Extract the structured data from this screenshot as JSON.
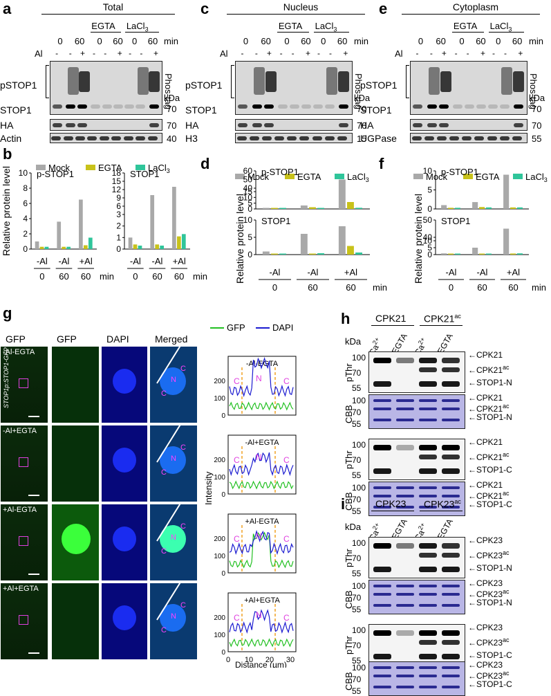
{
  "panels": {
    "a": "a",
    "b": "b",
    "c": "c",
    "d": "d",
    "e": "e",
    "f": "f",
    "g": "g",
    "h": "h",
    "i": "i"
  },
  "blots": {
    "a": {
      "title": "Total",
      "conditions": {
        "egta": "EGTA",
        "lacl3": "LaCl3"
      },
      "times": [
        "0",
        "60",
        "0",
        "60",
        "0",
        "60"
      ],
      "time_unit": "min",
      "al_signs": [
        "-",
        "-",
        "+",
        "-",
        "-",
        "+",
        "-",
        "-",
        "+"
      ],
      "al": "Al",
      "rows": [
        "pSTOP1",
        "STOP1",
        "HA",
        "Actin"
      ],
      "phostag": "Phos-tag",
      "kda": "kDa",
      "markers": [
        "70",
        "70",
        "40"
      ]
    },
    "c": {
      "title": "Nucleus",
      "conditions": {
        "egta": "EGTA",
        "lacl3": "LaCl3"
      },
      "times": [
        "0",
        "60",
        "0",
        "60",
        "0",
        "60"
      ],
      "time_unit": "min",
      "al_signs": [
        "-",
        "-",
        "+",
        "-",
        "-",
        "+",
        "-",
        "-",
        "+"
      ],
      "al": "Al",
      "rows": [
        "pSTOP1",
        "STOP1",
        "HA",
        "H3"
      ],
      "phostag": "Phos-tag",
      "kda": "kDa",
      "markers": [
        "70",
        "70",
        "15"
      ]
    },
    "e": {
      "title": "Cytoplasm",
      "conditions": {
        "egta": "EGTA",
        "lacl3": "LaCl3"
      },
      "times": [
        "0",
        "60",
        "0",
        "60",
        "0",
        "60"
      ],
      "time_unit": "min",
      "al_signs": [
        "-",
        "-",
        "+",
        "-",
        "-",
        "+",
        "-",
        "-",
        "+"
      ],
      "al": "Al",
      "rows": [
        "pSTOP1",
        "STOP1",
        "HA",
        "UGPase"
      ],
      "phostag": "Phos-tag",
      "kda": "kDa",
      "markers": [
        "70",
        "70",
        "55"
      ]
    }
  },
  "legend": {
    "mock": "Mock",
    "egta": "EGTA",
    "lacl3": "LaCl3",
    "colors": {
      "mock": "#a9a9a9",
      "egta": "#c8c21a",
      "lacl3": "#2fc59a"
    }
  },
  "chart_data": [
    {
      "panel": "b",
      "type": "bar",
      "title": "p-STOP1",
      "ylabel": "Relative protein level",
      "categories": [
        "-Al 0",
        "-Al 60",
        "+Al 60"
      ],
      "series": [
        {
          "name": "Mock",
          "values": [
            1.0,
            3.6,
            6.5
          ]
        },
        {
          "name": "EGTA",
          "values": [
            0.3,
            0.3,
            0.5
          ]
        },
        {
          "name": "LaCl3",
          "values": [
            0.3,
            0.3,
            1.5
          ]
        }
      ],
      "ylim": [
        0,
        10
      ],
      "yticks": [
        "0",
        "2",
        "4",
        "6",
        "8",
        "10"
      ],
      "sig": [
        "****",
        "****",
        "***",
        "***",
        "***",
        "***",
        "***"
      ]
    },
    {
      "panel": "b",
      "type": "bar",
      "title": "STOP1",
      "categories": [
        "-Al 0",
        "-Al 60",
        "+Al 60"
      ],
      "series": [
        {
          "name": "Mock",
          "values": [
            1.0,
            10.0,
            13.0
          ]
        },
        {
          "name": "EGTA",
          "values": [
            0.4,
            0.4,
            1.1
          ]
        },
        {
          "name": "LaCl3",
          "values": [
            0.3,
            0.3,
            1.3
          ]
        }
      ],
      "ylim": [
        0,
        18
      ],
      "yticks": [
        "0",
        "1",
        "2",
        "3",
        "6",
        "9",
        "12",
        "15",
        "18"
      ],
      "sig": [
        "****",
        "***",
        "****",
        "****",
        "****",
        "****"
      ]
    },
    {
      "panel": "d",
      "type": "bar",
      "title": "p-STOP1",
      "categories": [
        "-Al 0",
        "-Al 60",
        "+Al 60"
      ],
      "series": [
        {
          "name": "Mock",
          "values": [
            0.8,
            3.0,
            50
          ]
        },
        {
          "name": "EGTA",
          "values": [
            0.3,
            1.5,
            6
          ]
        },
        {
          "name": "LaCl3",
          "values": [
            0.4,
            0.8,
            1.0
          ]
        }
      ],
      "ylim": [
        0,
        60
      ],
      "yticks": [
        "0",
        "5",
        "10",
        "15",
        "40",
        "50",
        "60"
      ],
      "sig": [
        "**",
        "***",
        "****",
        "****"
      ]
    },
    {
      "panel": "d",
      "type": "bar",
      "title": "STOP1",
      "categories": [
        "-Al 0",
        "-Al 60",
        "+Al 60"
      ],
      "series": [
        {
          "name": "Mock",
          "values": [
            0.9,
            6.0,
            8.2
          ]
        },
        {
          "name": "EGTA",
          "values": [
            0.2,
            0.1,
            2.5
          ]
        },
        {
          "name": "LaCl3",
          "values": [
            0.2,
            0.4,
            0.6
          ]
        }
      ],
      "ylim": [
        0,
        10
      ],
      "yticks": [
        "0",
        "5",
        "10"
      ],
      "sig": [
        "***",
        "****",
        "****"
      ]
    },
    {
      "panel": "f",
      "type": "bar",
      "title": "p-STOP1",
      "categories": [
        "-Al 0",
        "-Al 60",
        "+Al 60"
      ],
      "series": [
        {
          "name": "Mock",
          "values": [
            1.0,
            1.8,
            9.0
          ]
        },
        {
          "name": "EGTA",
          "values": [
            0.3,
            0.5,
            0.4
          ]
        },
        {
          "name": "LaCl3",
          "values": [
            0.3,
            0.4,
            0.4
          ]
        }
      ],
      "ylim": [
        0,
        10
      ],
      "yticks": [
        "0",
        "5",
        "10"
      ],
      "sig": [
        "****",
        "***",
        "****",
        "****"
      ]
    },
    {
      "panel": "f",
      "type": "bar",
      "title": "STOP1",
      "categories": [
        "-Al 0",
        "-Al 60",
        "+Al 60"
      ],
      "series": [
        {
          "name": "Mock",
          "values": [
            0.9,
            5.0,
            45
          ]
        },
        {
          "name": "EGTA",
          "values": [
            0.2,
            0.3,
            0.8
          ]
        },
        {
          "name": "LaCl3",
          "values": [
            0.2,
            0.3,
            0.9
          ]
        }
      ],
      "ylim": [
        0,
        50
      ],
      "yticks": [
        "0",
        "5",
        "10",
        "40",
        "50"
      ],
      "sig": [
        "****",
        "****",
        "****"
      ]
    }
  ],
  "axis": {
    "al_groups": [
      "-Al",
      "-Al",
      "+Al"
    ],
    "times": [
      "0",
      "60",
      "60"
    ],
    "unit": "min",
    "ylabel": "Relative protein level"
  },
  "micro": {
    "cols": [
      "GFP",
      "GFP",
      "DAPI",
      "Merged"
    ],
    "rows": [
      "-Al-EGTA",
      "-Al+EGTA",
      "+Al-EGTA",
      "+Al+EGTA"
    ],
    "genotype": "STOP1p:STOP1-GFP",
    "n": "N",
    "c": "C"
  },
  "profiles": {
    "legend_gfp": "GFP",
    "legend_dapi": "DAPI",
    "xlabel": "Distance (µm)",
    "ylabel": "Intensity",
    "xticks": [
      "0",
      "10",
      "20",
      "30"
    ],
    "yticks": [
      "0",
      "100",
      "200",
      "300"
    ],
    "titles": [
      "-Al-EGTA",
      "-Al+EGTA",
      "+Al-EGTA",
      "+Al+EGTA"
    ],
    "colors": {
      "gfp": "#22c022",
      "dapi": "#1a1ad0",
      "dash": "#f0a020"
    }
  },
  "kinase_h": {
    "groups": [
      "CPK21",
      "CPK21ac"
    ],
    "lanes": [
      "Ca2+",
      "EGTA",
      "Ca2+",
      "EGTA"
    ],
    "kda": "kDa",
    "rows": [
      "pThr",
      "CBB",
      "pThr",
      "CBB"
    ],
    "markers": [
      "100",
      "70",
      "55"
    ],
    "labels": [
      [
        "CPK21",
        "CPK21ac",
        "STOP1-N"
      ],
      [
        "CPK21",
        "CPK21ac",
        "STOP1-N"
      ],
      [
        "CPK21",
        "CPK21ac",
        "STOP1-C"
      ],
      [
        "CPK21",
        "CPK21ac",
        "STOP1-C"
      ]
    ]
  },
  "kinase_i": {
    "groups": [
      "CPK23",
      "CPK23ac"
    ],
    "lanes": [
      "Ca2+",
      "EGTA",
      "Ca2+",
      "EGTA"
    ],
    "kda": "kDa",
    "rows": [
      "pThr",
      "CBB",
      "pThr",
      "CBB"
    ],
    "markers": [
      "100",
      "70",
      "55"
    ],
    "labels": [
      [
        "CPK23",
        "CPK23ac",
        "STOP1-N"
      ],
      [
        "CPK23",
        "CPK23ac",
        "STOP1-N"
      ],
      [
        "CPK23",
        "CPK23ac",
        "STOP1-C"
      ],
      [
        "CPK23",
        "CPK23ac",
        "STOP1-C"
      ]
    ]
  }
}
